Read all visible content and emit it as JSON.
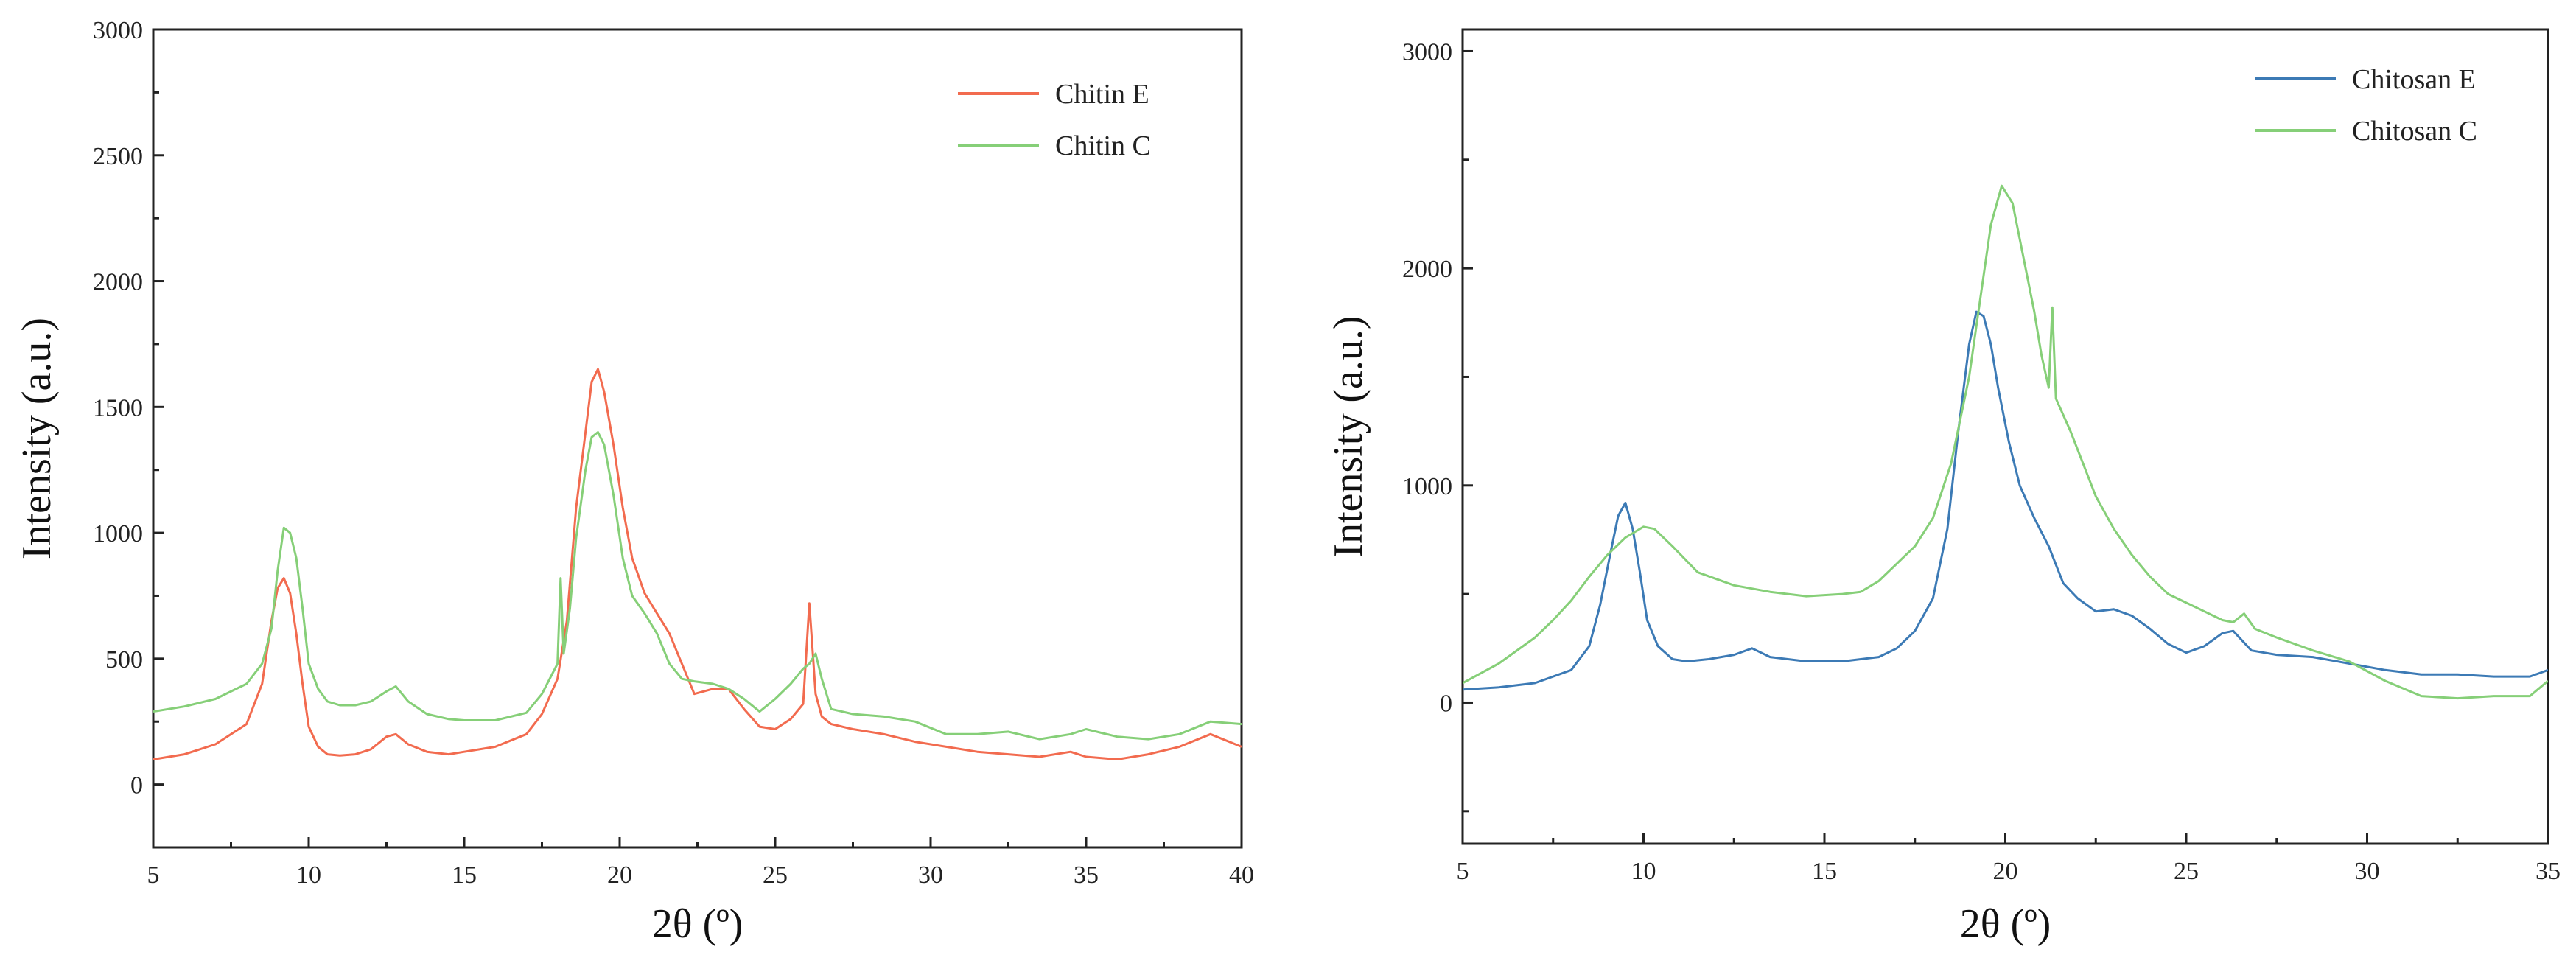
{
  "chart_data": [
    {
      "type": "line",
      "title": "",
      "xlabel": "2θ (º)",
      "ylabel": "Intensity (a.u.)",
      "xlim": [
        5,
        40
      ],
      "ylim": [
        -250,
        3000
      ],
      "xticks": [
        5,
        10,
        15,
        20,
        25,
        30,
        35,
        40
      ],
      "yticks": [
        0,
        500,
        1000,
        1500,
        2000,
        2500,
        3000
      ],
      "grid": false,
      "legend_position": "top-right",
      "series": [
        {
          "name": "Chitin E",
          "color": "#f26b4f",
          "x": [
            5,
            6,
            7,
            8,
            8.5,
            8.8,
            9.0,
            9.2,
            9.4,
            9.6,
            9.8,
            10.0,
            10.3,
            10.6,
            11,
            11.5,
            12,
            12.5,
            12.8,
            13.2,
            13.8,
            14.5,
            15,
            16,
            17,
            17.5,
            18,
            18.3,
            18.6,
            18.9,
            19.1,
            19.3,
            19.5,
            19.8,
            20.1,
            20.4,
            20.8,
            21.2,
            21.6,
            22.0,
            22.4,
            23.0,
            23.5,
            24.0,
            24.5,
            25.0,
            25.5,
            25.9,
            26.1,
            26.3,
            26.5,
            26.8,
            27.5,
            28.5,
            29.5,
            30.5,
            31.5,
            32.5,
            33.5,
            34.5,
            35.0,
            36.0,
            37.0,
            38.0,
            39.0,
            40.0
          ],
          "y": [
            100,
            120,
            160,
            240,
            400,
            650,
            780,
            820,
            760,
            600,
            400,
            230,
            150,
            120,
            115,
            120,
            140,
            190,
            200,
            160,
            130,
            120,
            130,
            150,
            200,
            280,
            420,
            650,
            1100,
            1400,
            1600,
            1650,
            1560,
            1350,
            1100,
            900,
            760,
            680,
            600,
            480,
            360,
            380,
            380,
            300,
            230,
            220,
            260,
            320,
            720,
            360,
            270,
            240,
            220,
            200,
            170,
            150,
            130,
            120,
            110,
            130,
            110,
            100,
            120,
            150,
            200,
            150
          ]
        },
        {
          "name": "Chitin C",
          "color": "#86cf78",
          "x": [
            5,
            6,
            7,
            8,
            8.5,
            8.8,
            9.0,
            9.2,
            9.4,
            9.6,
            9.8,
            10.0,
            10.3,
            10.6,
            11,
            11.5,
            12,
            12.5,
            12.8,
            13.2,
            13.8,
            14.5,
            15,
            16,
            17,
            17.5,
            18.0,
            18.1,
            18.2,
            18.4,
            18.6,
            18.9,
            19.1,
            19.3,
            19.5,
            19.8,
            20.1,
            20.4,
            20.8,
            21.2,
            21.6,
            22.0,
            22.4,
            23.0,
            23.5,
            24.0,
            24.5,
            25.0,
            25.5,
            25.9,
            26.1,
            26.3,
            26.5,
            26.8,
            27.5,
            28.5,
            29.5,
            30.5,
            31.5,
            32.5,
            33.5,
            34.5,
            35.0,
            36.0,
            37.0,
            38.0,
            39.0,
            40.0
          ],
          "y": [
            290,
            310,
            340,
            400,
            480,
            620,
            850,
            1020,
            1000,
            900,
            700,
            480,
            380,
            330,
            315,
            315,
            330,
            370,
            390,
            330,
            280,
            260,
            255,
            255,
            285,
            360,
            480,
            820,
            520,
            700,
            980,
            1250,
            1380,
            1400,
            1350,
            1150,
            900,
            750,
            680,
            600,
            480,
            420,
            410,
            400,
            380,
            340,
            290,
            340,
            400,
            460,
            480,
            520,
            420,
            300,
            280,
            270,
            250,
            200,
            200,
            210,
            180,
            200,
            220,
            190,
            180,
            200,
            250,
            240
          ]
        }
      ]
    },
    {
      "type": "line",
      "title": "",
      "xlabel": "2θ (º)",
      "ylabel": "Intensity (a.u.)",
      "xlim": [
        5,
        35
      ],
      "ylim": [
        -650,
        3100
      ],
      "xticks": [
        5,
        10,
        15,
        20,
        25,
        30,
        35
      ],
      "yticks": [
        0,
        1000,
        2000,
        3000
      ],
      "grid": false,
      "legend_position": "top-right",
      "series": [
        {
          "name": "Chitosan E",
          "color": "#3c7ab5",
          "x": [
            5,
            6,
            7,
            8,
            8.5,
            8.8,
            9.1,
            9.3,
            9.5,
            9.7,
            9.9,
            10.1,
            10.4,
            10.8,
            11.2,
            11.8,
            12.5,
            13.0,
            13.5,
            14.5,
            15.5,
            16.5,
            17.0,
            17.5,
            18.0,
            18.4,
            18.7,
            19.0,
            19.2,
            19.4,
            19.6,
            19.8,
            20.1,
            20.4,
            20.8,
            21.2,
            21.6,
            22.0,
            22.5,
            23.0,
            23.5,
            24.0,
            24.5,
            25.0,
            25.5,
            26.0,
            26.3,
            26.8,
            27.5,
            28.5,
            29.5,
            30.5,
            31.5,
            32.5,
            33.5,
            34.5,
            35.0
          ],
          "y": [
            60,
            70,
            90,
            150,
            260,
            450,
            700,
            860,
            920,
            800,
            600,
            380,
            260,
            200,
            190,
            200,
            220,
            250,
            210,
            190,
            190,
            210,
            250,
            330,
            480,
            800,
            1250,
            1650,
            1800,
            1780,
            1650,
            1450,
            1200,
            1000,
            850,
            720,
            550,
            480,
            420,
            430,
            400,
            340,
            270,
            230,
            260,
            320,
            330,
            240,
            220,
            210,
            180,
            150,
            130,
            130,
            120,
            120,
            150
          ]
        },
        {
          "name": "Chitosan C",
          "color": "#86cf78",
          "x": [
            5,
            6,
            7,
            7.5,
            8,
            8.5,
            9,
            9.5,
            10,
            10.3,
            10.8,
            11.5,
            12.5,
            13.5,
            14.5,
            15.5,
            16.0,
            16.5,
            17.0,
            17.5,
            18.0,
            18.5,
            19.0,
            19.3,
            19.6,
            19.9,
            20.2,
            20.5,
            20.8,
            21.0,
            21.2,
            21.3,
            21.4,
            21.8,
            22.5,
            23.0,
            23.5,
            24.0,
            24.5,
            25.0,
            25.5,
            26.0,
            26.3,
            26.6,
            26.9,
            27.5,
            28.5,
            29.5,
            30.5,
            31.5,
            32.5,
            33.5,
            34.5,
            35.0
          ],
          "y": [
            90,
            180,
            300,
            380,
            470,
            580,
            680,
            760,
            810,
            800,
            720,
            600,
            540,
            510,
            490,
            500,
            510,
            560,
            640,
            720,
            850,
            1100,
            1500,
            1850,
            2200,
            2380,
            2300,
            2050,
            1800,
            1600,
            1450,
            1820,
            1400,
            1250,
            950,
            800,
            680,
            580,
            500,
            460,
            420,
            380,
            370,
            410,
            340,
            300,
            240,
            190,
            100,
            30,
            20,
            30,
            30,
            100
          ]
        }
      ]
    }
  ]
}
